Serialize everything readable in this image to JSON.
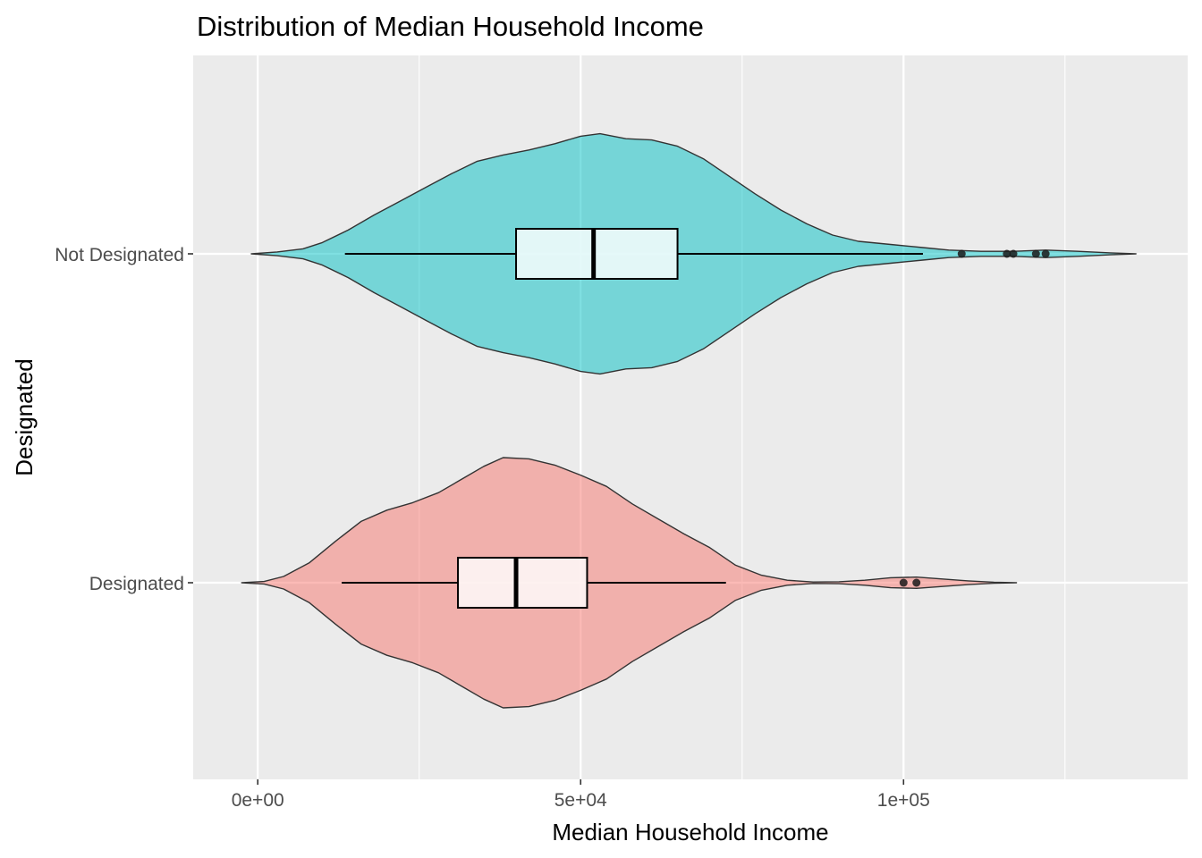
{
  "chart_data": {
    "type": "violin",
    "title": "Distribution of Median Household Income",
    "xlabel": "Median Household Income",
    "ylabel": "Designated",
    "xlim": [
      -10000,
      144000
    ],
    "x_ticks": [
      {
        "value": 0,
        "label": "0e+00"
      },
      {
        "value": 50000,
        "label": "5e+04"
      },
      {
        "value": 100000,
        "label": "1e+05"
      }
    ],
    "x_minor_ticks": [
      25000,
      75000,
      125000
    ],
    "categories": [
      "Designated",
      "Not Designated"
    ],
    "grid": true,
    "panel_background": "#ebebeb",
    "grid_color": "#ffffff",
    "series": [
      {
        "category": "Not Designated",
        "fill": "#00BFC4",
        "fill_opacity": 0.5,
        "outline": "#333333",
        "density": [
          [
            -1000,
            0.0
          ],
          [
            3000,
            0.015
          ],
          [
            7000,
            0.04
          ],
          [
            10000,
            0.09
          ],
          [
            14000,
            0.19
          ],
          [
            18000,
            0.31
          ],
          [
            22000,
            0.42
          ],
          [
            26000,
            0.53
          ],
          [
            30000,
            0.64
          ],
          [
            34000,
            0.74
          ],
          [
            38000,
            0.79
          ],
          [
            42000,
            0.83
          ],
          [
            46000,
            0.88
          ],
          [
            50000,
            0.94
          ],
          [
            53000,
            0.96
          ],
          [
            57000,
            0.92
          ],
          [
            61000,
            0.91
          ],
          [
            65000,
            0.86
          ],
          [
            69000,
            0.76
          ],
          [
            73000,
            0.62
          ],
          [
            77000,
            0.48
          ],
          [
            81000,
            0.35
          ],
          [
            85000,
            0.24
          ],
          [
            89000,
            0.15
          ],
          [
            93000,
            0.1
          ],
          [
            98000,
            0.075
          ],
          [
            103000,
            0.05
          ],
          [
            107000,
            0.03
          ],
          [
            112000,
            0.02
          ],
          [
            117000,
            0.02
          ],
          [
            122000,
            0.03
          ],
          [
            127000,
            0.02
          ],
          [
            132000,
            0.008
          ],
          [
            136000,
            0.0
          ]
        ],
        "box": {
          "whisker_low": 13500,
          "q1": 40000,
          "median": 52000,
          "q3": 65000,
          "whisker_high": 103000
        },
        "outliers": [
          109000,
          116000,
          117000,
          120500,
          122000
        ]
      },
      {
        "category": "Designated",
        "fill": "#F8766D",
        "fill_opacity": 0.5,
        "outline": "#333333",
        "density": [
          [
            -2500,
            0.0
          ],
          [
            1000,
            0.01
          ],
          [
            4000,
            0.05
          ],
          [
            8000,
            0.16
          ],
          [
            12000,
            0.33
          ],
          [
            16000,
            0.49
          ],
          [
            20000,
            0.58
          ],
          [
            24000,
            0.64
          ],
          [
            28000,
            0.72
          ],
          [
            32000,
            0.84
          ],
          [
            35000,
            0.93
          ],
          [
            38000,
            1.0
          ],
          [
            42000,
            0.99
          ],
          [
            46000,
            0.94
          ],
          [
            50000,
            0.86
          ],
          [
            54000,
            0.77
          ],
          [
            58000,
            0.63
          ],
          [
            62000,
            0.51
          ],
          [
            66000,
            0.39
          ],
          [
            70000,
            0.28
          ],
          [
            74000,
            0.14
          ],
          [
            78000,
            0.06
          ],
          [
            82000,
            0.02
          ],
          [
            86000,
            0.006
          ],
          [
            90000,
            0.008
          ],
          [
            94000,
            0.02
          ],
          [
            98000,
            0.04
          ],
          [
            102000,
            0.045
          ],
          [
            106000,
            0.03
          ],
          [
            110000,
            0.015
          ],
          [
            114000,
            0.004
          ],
          [
            117500,
            0.0
          ]
        ],
        "box": {
          "whisker_low": 13000,
          "q1": 31000,
          "median": 40000,
          "q3": 51000,
          "whisker_high": 72500
        },
        "outliers": [
          100000,
          102000
        ]
      }
    ]
  }
}
